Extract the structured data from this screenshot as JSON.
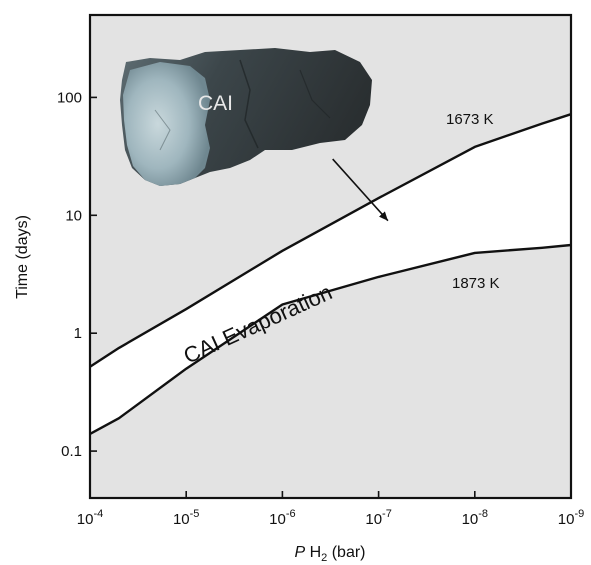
{
  "chart_data": {
    "type": "line",
    "title": "",
    "xlabel": "PH2 (bar)",
    "xlabel_parts": {
      "italic": "P",
      "base": " H",
      "sub": "2",
      "rest": " (bar)"
    },
    "ylabel": "Time (days)",
    "x_scale": "log, reversed",
    "y_scale": "log",
    "xlim": [
      0.0001,
      1e-09
    ],
    "ylim": [
      0.04,
      500
    ],
    "x_ticks": [
      {
        "value": 0.0001,
        "base": "10",
        "exp": "-4"
      },
      {
        "value": 1e-05,
        "base": "10",
        "exp": "-5"
      },
      {
        "value": 1e-06,
        "base": "10",
        "exp": "-6"
      },
      {
        "value": 1e-07,
        "base": "10",
        "exp": "-7"
      },
      {
        "value": 1e-08,
        "base": "10",
        "exp": "-8"
      },
      {
        "value": 1e-09,
        "base": "10",
        "exp": "-9"
      }
    ],
    "y_ticks": [
      {
        "value": 0.1,
        "label": "0.1"
      },
      {
        "value": 1,
        "label": "1"
      },
      {
        "value": 10,
        "label": "10"
      },
      {
        "value": 100,
        "label": "100"
      }
    ],
    "grid": false,
    "background_color": "#e3e3e3",
    "band_color": "#ffffff",
    "series": [
      {
        "name": "1673 K",
        "x": [
          0.0001,
          5e-05,
          1e-05,
          1e-06,
          1e-07,
          1e-08,
          2e-09,
          1e-09
        ],
        "y": [
          0.52,
          0.75,
          1.6,
          5.0,
          14,
          38,
          60,
          72
        ]
      },
      {
        "name": "1873 K",
        "x": [
          0.0001,
          5e-05,
          1e-05,
          1e-06,
          1e-07,
          1e-08,
          2e-09,
          1e-09
        ],
        "y": [
          0.14,
          0.19,
          0.5,
          1.75,
          3.0,
          4.8,
          5.3,
          5.6
        ]
      }
    ],
    "band_label": "CAI Evaporation",
    "annotations": {
      "photo_label": "CAI",
      "arrow": {
        "from_x": 3e-07,
        "from_y": 30,
        "to_x": 8e-08,
        "to_y": 9
      }
    }
  }
}
